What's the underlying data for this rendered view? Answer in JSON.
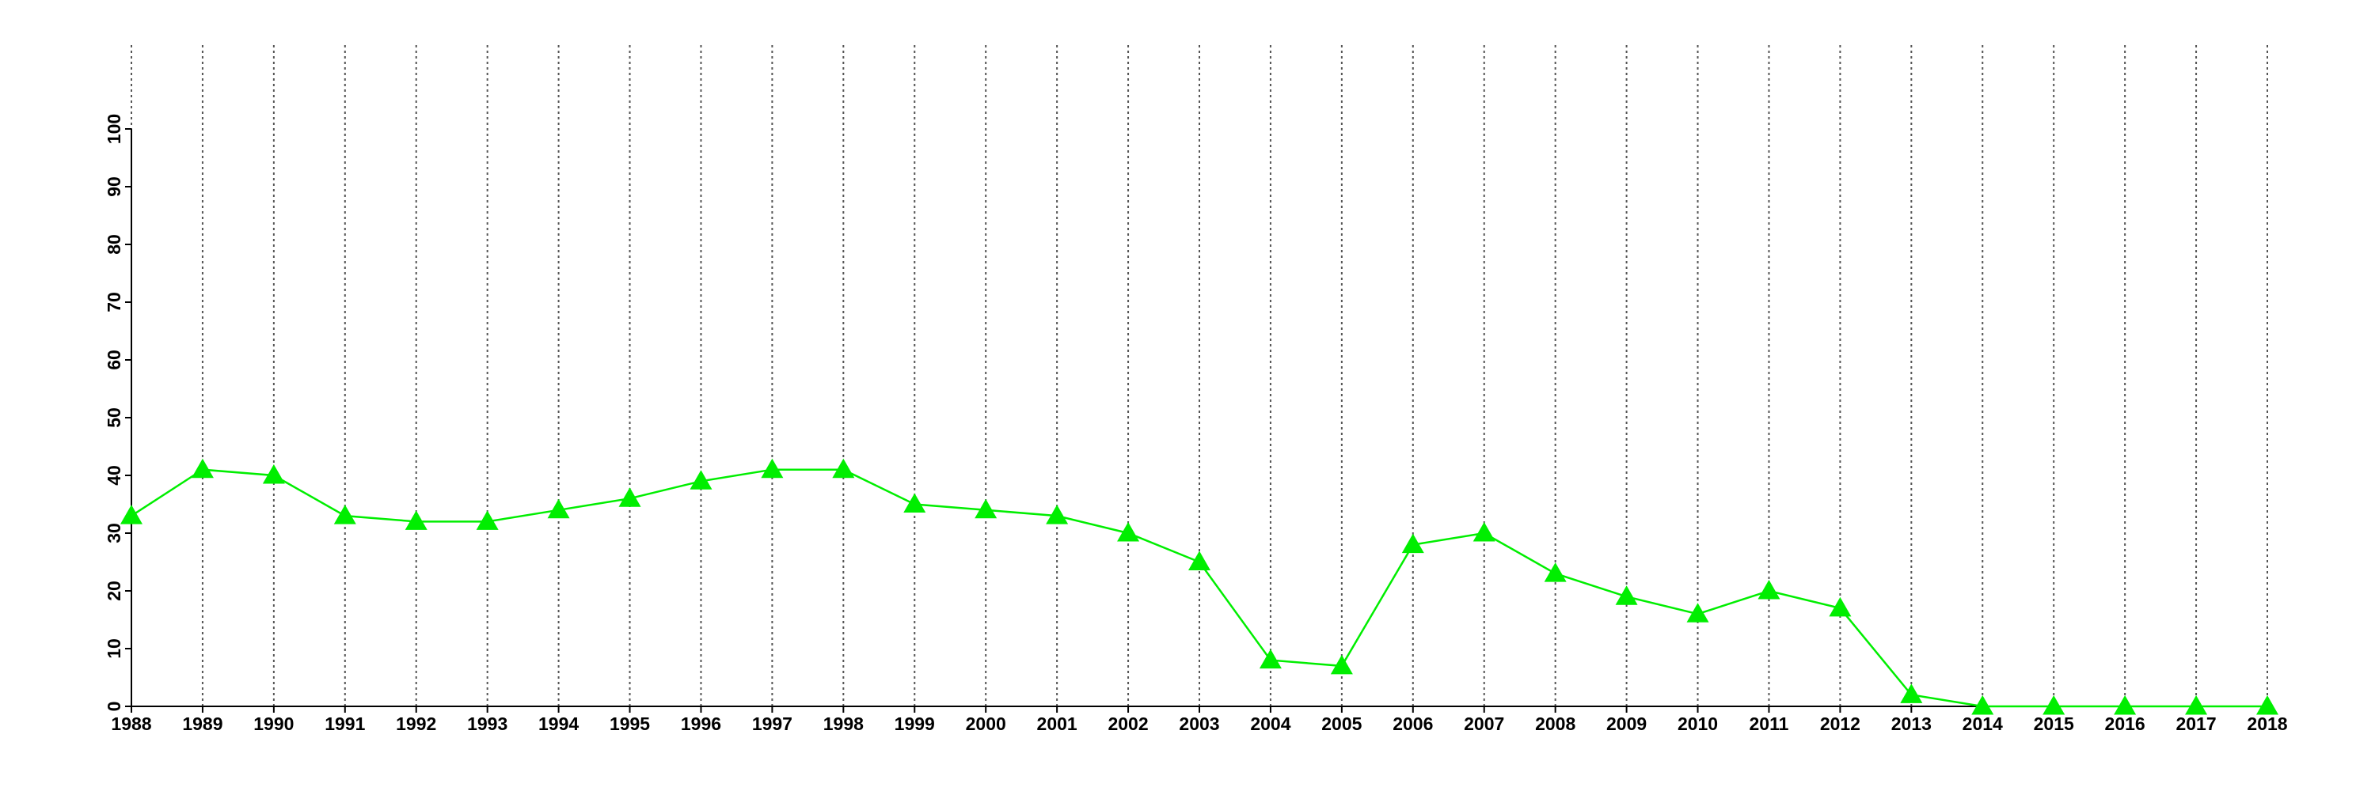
{
  "chart_data": {
    "type": "line",
    "categories": [
      "1988",
      "1989",
      "1990",
      "1991",
      "1992",
      "1993",
      "1994",
      "1995",
      "1996",
      "1997",
      "1998",
      "1999",
      "2000",
      "2001",
      "2002",
      "2003",
      "2004",
      "2005",
      "2006",
      "2007",
      "2008",
      "2009",
      "2010",
      "2011",
      "2012",
      "2013",
      "2014",
      "2015",
      "2016",
      "2017",
      "2018"
    ],
    "series": [
      {
        "color": "#00ee00",
        "marker": "triangle",
        "values": [
          33,
          41,
          40,
          33,
          32,
          32,
          34,
          36,
          39,
          41,
          41,
          35,
          34,
          33,
          30,
          25,
          8,
          7,
          28,
          30,
          23,
          19,
          16,
          20,
          17,
          2,
          0,
          0,
          0,
          0,
          0
        ]
      }
    ],
    "ylim": [
      0,
      100
    ],
    "yticks": [
      0,
      10,
      20,
      30,
      40,
      50,
      60,
      70,
      80,
      90,
      100
    ],
    "grid": "x"
  }
}
